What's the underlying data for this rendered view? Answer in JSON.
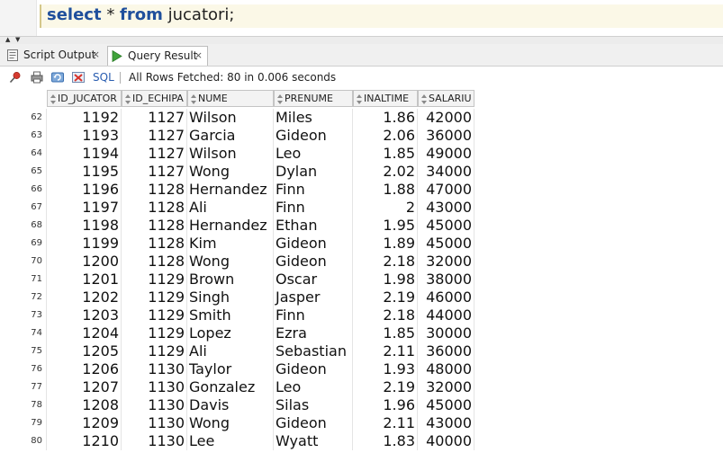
{
  "editor": {
    "keyword_select": "select",
    "star": "*",
    "keyword_from": "from",
    "table": "jucatori;"
  },
  "tabs": [
    {
      "label": "Script Output",
      "close": "×"
    },
    {
      "label": "Query Result",
      "close": "×"
    }
  ],
  "toolbar": {
    "sql_label": "SQL",
    "status": "All Rows Fetched: 80 in 0.006 seconds"
  },
  "grid": {
    "columns": [
      "ID_JUCATOR",
      "ID_ECHIPA",
      "NUME",
      "PRENUME",
      "INALTIME",
      "SALARIU"
    ],
    "rows": [
      [
        "62",
        "1192",
        "1127",
        "Wilson",
        "Miles",
        "1.86",
        "42000"
      ],
      [
        "63",
        "1193",
        "1127",
        "Garcia",
        "Gideon",
        "2.06",
        "36000"
      ],
      [
        "64",
        "1194",
        "1127",
        "Wilson",
        "Leo",
        "1.85",
        "49000"
      ],
      [
        "65",
        "1195",
        "1127",
        "Wong",
        "Dylan",
        "2.02",
        "34000"
      ],
      [
        "66",
        "1196",
        "1128",
        "Hernandez",
        "Finn",
        "1.88",
        "47000"
      ],
      [
        "67",
        "1197",
        "1128",
        "Ali",
        "Finn",
        "2",
        "43000"
      ],
      [
        "68",
        "1198",
        "1128",
        "Hernandez",
        "Ethan",
        "1.95",
        "45000"
      ],
      [
        "69",
        "1199",
        "1128",
        "Kim",
        "Gideon",
        "1.89",
        "45000"
      ],
      [
        "70",
        "1200",
        "1128",
        "Wong",
        "Gideon",
        "2.18",
        "32000"
      ],
      [
        "71",
        "1201",
        "1129",
        "Brown",
        "Oscar",
        "1.98",
        "38000"
      ],
      [
        "72",
        "1202",
        "1129",
        "Singh",
        "Jasper",
        "2.19",
        "46000"
      ],
      [
        "73",
        "1203",
        "1129",
        "Smith",
        "Finn",
        "2.18",
        "44000"
      ],
      [
        "74",
        "1204",
        "1129",
        "Lopez",
        "Ezra",
        "1.85",
        "30000"
      ],
      [
        "75",
        "1205",
        "1129",
        "Ali",
        "Sebastian",
        "2.11",
        "36000"
      ],
      [
        "76",
        "1206",
        "1130",
        "Taylor",
        "Gideon",
        "1.93",
        "48000"
      ],
      [
        "77",
        "1207",
        "1130",
        "Gonzalez",
        "Leo",
        "2.19",
        "32000"
      ],
      [
        "78",
        "1208",
        "1130",
        "Davis",
        "Silas",
        "1.96",
        "45000"
      ],
      [
        "79",
        "1209",
        "1130",
        "Wong",
        "Gideon",
        "2.11",
        "43000"
      ],
      [
        "80",
        "1210",
        "1130",
        "Lee",
        "Wyatt",
        "1.83",
        "40000"
      ]
    ]
  }
}
